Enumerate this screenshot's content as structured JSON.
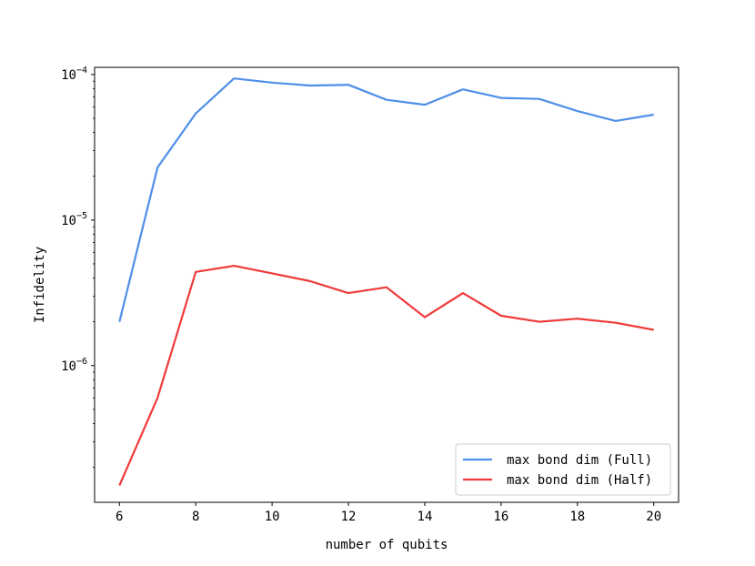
{
  "chart_data": {
    "type": "line",
    "title": "",
    "xlabel": "number of qubits",
    "ylabel": "Infidelity",
    "xlim": [
      5.35,
      20.65
    ],
    "ylim": [
      1.15e-07,
      0.000112
    ],
    "yscale": "log",
    "x_ticks": [
      6,
      8,
      10,
      12,
      14,
      16,
      18,
      20
    ],
    "y_major_ticks": [
      {
        "value": 1e-06,
        "base": "10",
        "exp": "−6"
      },
      {
        "value": 1e-05,
        "base": "10",
        "exp": "−5"
      },
      {
        "value": 0.0001,
        "base": "10",
        "exp": "−4"
      }
    ],
    "grid": false,
    "legend_position": "lower-right",
    "x": [
      6,
      7,
      8,
      9,
      10,
      11,
      12,
      13,
      14,
      15,
      16,
      17,
      18,
      19,
      20
    ],
    "series": [
      {
        "name": "max bond dim (Full)",
        "color": "#4f8fe8",
        "values": [
          2e-06,
          2.3e-05,
          5.4e-05,
          9.4e-05,
          8.8e-05,
          8.4e-05,
          8.5e-05,
          6.7e-05,
          6.2e-05,
          7.9e-05,
          6.9e-05,
          6.8e-05,
          5.6e-05,
          4.8e-05,
          5.3e-05
        ]
      },
      {
        "name": "max bond dim (Half)",
        "color": "#f03a3a",
        "values": [
          1.5e-07,
          6e-07,
          4.4e-06,
          4.85e-06,
          4.3e-06,
          3.8e-06,
          3.15e-06,
          3.45e-06,
          2.15e-06,
          3.15e-06,
          2.2e-06,
          2e-06,
          2.1e-06,
          1.97e-06,
          1.76e-06
        ]
      }
    ]
  }
}
